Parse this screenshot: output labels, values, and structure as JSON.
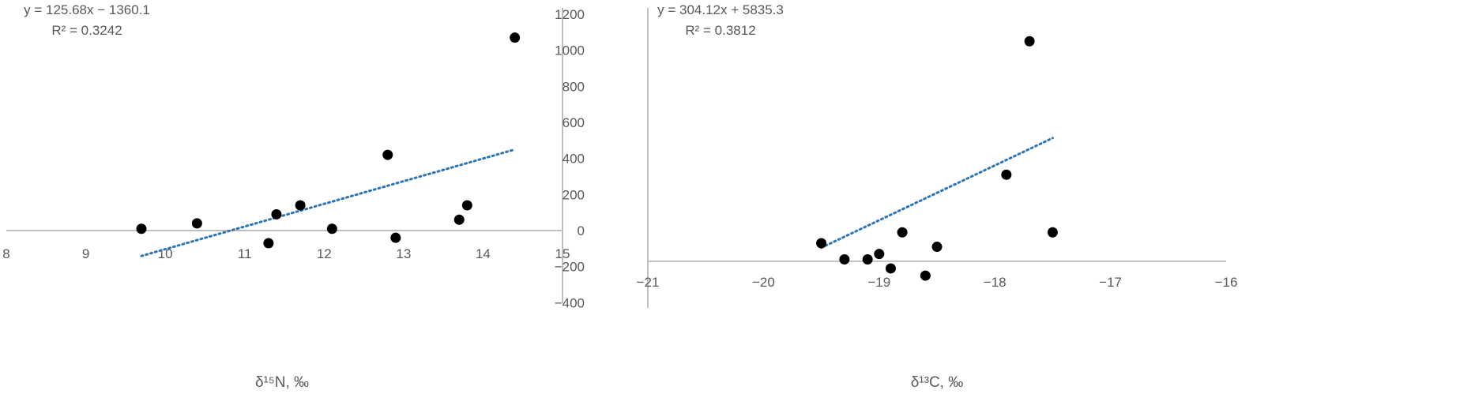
{
  "style": {
    "axis_color": "#bfbfbf",
    "text_color": "#595959",
    "marker_color": "#000000",
    "trend_color": "#2e75b6"
  },
  "chart_data": [
    {
      "type": "scatter",
      "xlabel": "δ¹⁵N, ‰",
      "ylabel": "",
      "xlim": [
        8,
        15
      ],
      "ylim": [
        -400,
        1200
      ],
      "x_ticks": [
        8,
        9,
        10,
        11,
        12,
        13,
        14,
        15
      ],
      "y_ticks": [
        -400,
        -200,
        0,
        200,
        400,
        600,
        800,
        1000,
        1200
      ],
      "y_tick_labels": [
        "−400",
        "−200",
        "0",
        "200",
        "400",
        "600",
        "800",
        "1000",
        "1200"
      ],
      "show_y_tick_labels": true,
      "x_axis_crosses_at": 0,
      "y_axis_crosses_at": 15,
      "grid": false,
      "series": [
        {
          "points": [
            [
              9.7,
              10
            ],
            [
              10.4,
              40
            ],
            [
              11.3,
              -70
            ],
            [
              11.4,
              90
            ],
            [
              11.7,
              140
            ],
            [
              12.1,
              10
            ],
            [
              12.8,
              420
            ],
            [
              12.9,
              -40
            ],
            [
              13.7,
              60
            ],
            [
              13.8,
              140
            ],
            [
              14.4,
              1070
            ]
          ]
        }
      ],
      "trendline": {
        "slope": 125.68,
        "intercept": -1360.1,
        "x_range": [
          9.7,
          14.4
        ],
        "equation": "y = 125.68x − 1360.1",
        "r2": "R² = 0.3242"
      }
    },
    {
      "type": "scatter",
      "xlabel": "δ¹³C, ‰",
      "ylabel": "",
      "xlim": [
        -21,
        -16
      ],
      "ylim": [
        -400,
        1200
      ],
      "x_ticks": [
        -21,
        -20,
        -19,
        -18,
        -17,
        -16
      ],
      "x_tick_labels": [
        "−21",
        "−20",
        "−19",
        "−18",
        "−17",
        "−16"
      ],
      "y_ticks": [
        -400,
        -200,
        0,
        200,
        400,
        600,
        800,
        1000,
        1200
      ],
      "show_y_tick_labels": false,
      "x_axis_crosses_at": -170,
      "y_axis_crosses_at": -21,
      "grid": false,
      "series": [
        {
          "points": [
            [
              -19.5,
              -70
            ],
            [
              -19.3,
              -160
            ],
            [
              -19.1,
              -160
            ],
            [
              -19.0,
              -130
            ],
            [
              -18.9,
              -210
            ],
            [
              -18.8,
              -10
            ],
            [
              -18.6,
              -250
            ],
            [
              -18.5,
              -90
            ],
            [
              -17.9,
              310
            ],
            [
              -17.7,
              1050
            ],
            [
              -17.5,
              -10
            ]
          ]
        }
      ],
      "trendline": {
        "slope": 304.12,
        "intercept": 5835.3,
        "x_range": [
          -19.5,
          -17.5
        ],
        "equation": "y = 304.12x + 5835.3",
        "r2": "R² = 0.3812"
      }
    }
  ]
}
